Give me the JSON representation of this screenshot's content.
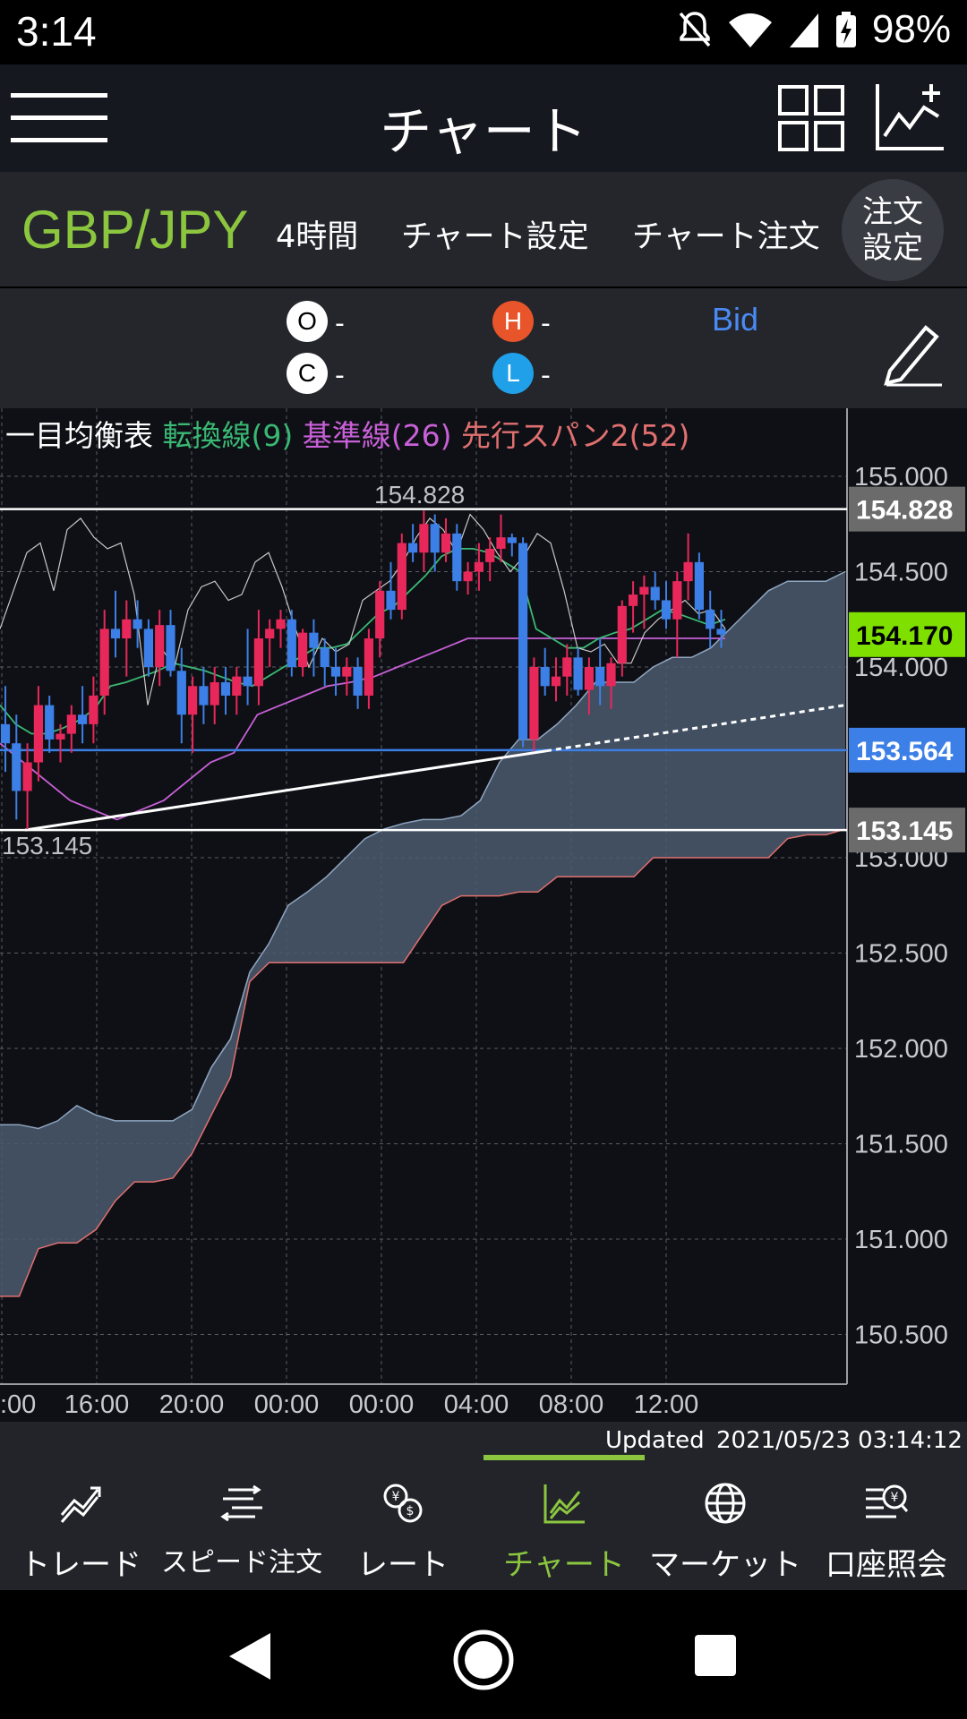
{
  "status": {
    "time": "3:14",
    "battery": "98%"
  },
  "appbar": {
    "title": "チャート"
  },
  "symbolbar": {
    "symbol": "GBP/JPY",
    "timeframe": "4時間",
    "chart_settings": "チャート設定",
    "chart_order": "チャート注文",
    "order_settings_1": "注文",
    "order_settings_2": "設定"
  },
  "ohlc": {
    "o": "O",
    "h": "H",
    "c": "C",
    "l": "L",
    "dash": "-",
    "bid": "Bid"
  },
  "indicator": {
    "name": "一目均衡表",
    "tenkan": "転換線(9)",
    "kijun": "基準線(26)",
    "senkou": "先行スパン2(52)"
  },
  "chart_data": {
    "type": "candlestick",
    "ylim": [
      150.2,
      155.2
    ],
    "y_ticks": [
      "155.000",
      "154.500",
      "154.000",
      "153.000",
      "152.500",
      "152.000",
      "151.500",
      "151.000",
      "150.500"
    ],
    "x_ticks": [
      ":00",
      "16:00",
      "20:00",
      "00:00",
      "00:00",
      "04:00",
      "08:00",
      "12:00"
    ],
    "high_label": "154.828",
    "low_label": "153.145",
    "price_tags": [
      {
        "text": "154.828",
        "color": "#6b6b6b"
      },
      {
        "text": "154.170",
        "color": "#7fe000"
      },
      {
        "text": "153.564",
        "color": "#3c7fe6"
      },
      {
        "text": "153.145",
        "color": "#6b6b6b"
      }
    ],
    "candles": [
      [
        153.7,
        153.9,
        153.45,
        153.6
      ],
      [
        153.6,
        153.75,
        153.2,
        153.35
      ],
      [
        153.35,
        153.6,
        153.15,
        153.5
      ],
      [
        153.5,
        153.9,
        153.4,
        153.8
      ],
      [
        153.8,
        153.85,
        153.55,
        153.62
      ],
      [
        153.62,
        153.7,
        153.5,
        153.65
      ],
      [
        153.65,
        153.8,
        153.55,
        153.75
      ],
      [
        153.75,
        153.9,
        153.6,
        153.7
      ],
      [
        153.7,
        153.95,
        153.6,
        153.85
      ],
      [
        153.85,
        154.3,
        153.75,
        154.2
      ],
      [
        154.2,
        154.4,
        154.05,
        154.15
      ],
      [
        154.15,
        154.35,
        153.95,
        154.25
      ],
      [
        154.25,
        154.35,
        154.1,
        154.2
      ],
      [
        154.2,
        154.25,
        153.95,
        154.0
      ],
      [
        154.0,
        154.3,
        153.9,
        154.22
      ],
      [
        154.22,
        154.3,
        153.95,
        153.98
      ],
      [
        153.98,
        154.1,
        153.6,
        153.75
      ],
      [
        153.75,
        153.95,
        153.55,
        153.9
      ],
      [
        153.9,
        154.0,
        153.7,
        153.8
      ],
      [
        153.8,
        154.0,
        153.7,
        153.92
      ],
      [
        153.92,
        154.0,
        153.75,
        153.85
      ],
      [
        153.85,
        154.0,
        153.75,
        153.95
      ],
      [
        153.95,
        154.2,
        153.8,
        153.9
      ],
      [
        153.9,
        154.3,
        153.8,
        154.15
      ],
      [
        154.15,
        154.25,
        154.0,
        154.2
      ],
      [
        154.2,
        154.3,
        154.1,
        154.25
      ],
      [
        154.25,
        154.3,
        153.95,
        154.0
      ],
      [
        154.0,
        154.2,
        153.95,
        154.18
      ],
      [
        154.18,
        154.25,
        153.95,
        154.1
      ],
      [
        154.1,
        154.15,
        153.9,
        154.0
      ],
      [
        154.0,
        154.1,
        153.85,
        153.95
      ],
      [
        153.95,
        154.05,
        153.85,
        154.0
      ],
      [
        154.0,
        154.05,
        153.78,
        153.85
      ],
      [
        153.85,
        154.2,
        153.78,
        154.15
      ],
      [
        154.15,
        154.45,
        154.05,
        154.4
      ],
      [
        154.4,
        154.55,
        154.25,
        154.3
      ],
      [
        154.3,
        154.7,
        154.25,
        154.65
      ],
      [
        154.65,
        154.75,
        154.55,
        154.6
      ],
      [
        154.6,
        154.82,
        154.5,
        154.75
      ],
      [
        154.75,
        154.8,
        154.5,
        154.6
      ],
      [
        154.6,
        154.78,
        154.55,
        154.7
      ],
      [
        154.7,
        154.75,
        154.4,
        154.45
      ],
      [
        154.45,
        154.55,
        154.38,
        154.5
      ],
      [
        154.5,
        154.65,
        154.4,
        154.55
      ],
      [
        154.55,
        154.68,
        154.45,
        154.62
      ],
      [
        154.62,
        154.8,
        154.55,
        154.68
      ],
      [
        154.68,
        154.7,
        154.58,
        154.65
      ],
      [
        154.65,
        154.68,
        153.58,
        153.62
      ],
      [
        153.62,
        154.05,
        153.56,
        154.0
      ],
      [
        154.0,
        154.1,
        153.85,
        153.9
      ],
      [
        153.9,
        154.05,
        153.82,
        153.95
      ],
      [
        153.95,
        154.12,
        153.85,
        154.05
      ],
      [
        154.05,
        154.1,
        153.85,
        153.88
      ],
      [
        153.88,
        154.05,
        153.75,
        154.0
      ],
      [
        154.0,
        154.15,
        153.8,
        153.9
      ],
      [
        153.9,
        154.05,
        153.78,
        154.02
      ],
      [
        154.02,
        154.35,
        153.95,
        154.32
      ],
      [
        154.32,
        154.45,
        154.18,
        154.38
      ],
      [
        154.38,
        154.48,
        154.2,
        154.42
      ],
      [
        154.42,
        154.5,
        154.3,
        154.35
      ],
      [
        154.35,
        154.45,
        154.2,
        154.25
      ],
      [
        154.25,
        154.5,
        154.05,
        154.45
      ],
      [
        154.45,
        154.7,
        154.35,
        154.55
      ],
      [
        154.55,
        154.6,
        154.25,
        154.3
      ],
      [
        154.3,
        154.4,
        154.1,
        154.2
      ],
      [
        154.2,
        154.3,
        154.1,
        154.17
      ]
    ],
    "close_line": [
      154.2,
      154.4,
      154.6,
      154.65,
      154.4,
      154.72,
      154.78,
      154.68,
      154.62,
      154.65,
      154.38,
      153.8,
      154.1,
      154.0,
      154.3,
      154.42,
      154.45,
      154.35,
      154.38,
      154.55,
      154.6,
      154.42,
      154.2,
      154.0,
      154.15,
      154.08,
      154.12,
      154.35,
      154.4,
      154.45,
      154.55,
      154.68,
      154.78,
      154.72,
      154.6,
      154.8,
      154.72,
      154.6,
      154.5,
      154.58,
      154.7,
      154.65,
      154.4,
      154.1,
      154.08,
      154.12,
      154.02,
      154.02,
      154.18,
      154.25,
      154.3,
      154.35,
      154.28,
      154.3,
      154.2
    ],
    "tenkan": [
      153.8,
      153.7,
      153.65,
      153.65,
      153.68,
      153.72,
      153.78,
      153.9,
      153.92,
      153.95,
      153.98,
      154.02,
      154.0,
      153.98,
      153.95,
      153.92,
      153.9,
      153.95,
      154.0,
      154.05,
      154.1,
      154.1,
      154.12,
      154.2,
      154.28,
      154.32,
      154.4,
      154.48,
      154.58,
      154.62,
      154.62,
      154.6,
      154.55,
      154.5,
      154.2,
      154.15,
      154.1,
      154.1,
      154.15,
      154.18,
      154.2,
      154.25,
      154.3,
      154.28,
      154.25,
      154.22,
      154.25
    ],
    "kijun": [
      153.6,
      153.5,
      153.4,
      153.3,
      153.25,
      153.2,
      153.25,
      153.3,
      153.4,
      153.5,
      153.55,
      153.75,
      153.8,
      153.85,
      153.9,
      153.92,
      153.95,
      154.0,
      154.05,
      154.1,
      154.15,
      154.15,
      154.15,
      154.15,
      154.15,
      154.15,
      154.15,
      154.15,
      154.15,
      154.15,
      154.15,
      154.15
    ],
    "span_a": [
      151.6,
      151.6,
      151.58,
      151.62,
      151.7,
      151.65,
      151.62,
      151.62,
      151.62,
      151.62,
      151.68,
      151.9,
      152.05,
      152.4,
      152.55,
      152.75,
      152.82,
      152.9,
      153.0,
      153.1,
      153.15,
      153.18,
      153.2,
      153.2,
      153.22,
      153.3,
      153.5,
      153.62,
      153.62,
      153.7,
      153.8,
      153.92,
      153.92,
      153.92,
      154.0,
      154.05,
      154.05,
      154.1,
      154.2,
      154.3,
      154.4,
      154.45,
      154.45,
      154.45,
      154.5
    ],
    "span_b": [
      150.7,
      150.7,
      150.95,
      150.98,
      150.98,
      151.05,
      151.2,
      151.3,
      151.3,
      151.32,
      151.45,
      151.65,
      151.85,
      152.35,
      152.45,
      152.45,
      152.45,
      152.45,
      152.45,
      152.45,
      152.45,
      152.45,
      152.6,
      152.75,
      152.8,
      152.8,
      152.8,
      152.82,
      152.82,
      152.9,
      152.9,
      152.9,
      152.9,
      152.9,
      153.0,
      153.0,
      153.0,
      153.0,
      153.0,
      153.0,
      153.0,
      153.1,
      153.12,
      153.12,
      153.15
    ]
  },
  "updated": {
    "label": "Updated",
    "timestamp": "2021/05/23   03:14:12"
  },
  "tabs": [
    {
      "label": "トレード",
      "icon": "trade-icon"
    },
    {
      "label": "スピード注文",
      "icon": "speed-order-icon"
    },
    {
      "label": "レート",
      "icon": "rate-icon"
    },
    {
      "label": "チャート",
      "icon": "chart-icon"
    },
    {
      "label": "マーケット",
      "icon": "market-icon"
    },
    {
      "label": "口座照会",
      "icon": "account-icon"
    }
  ],
  "colors": {
    "accent": "#8cc63f",
    "up": "#e8285a",
    "down": "#3c7fe6",
    "tenkan": "#39b873",
    "kijun": "#c860d8",
    "span2": "#e07070",
    "cloud": "#4a5a6e"
  }
}
